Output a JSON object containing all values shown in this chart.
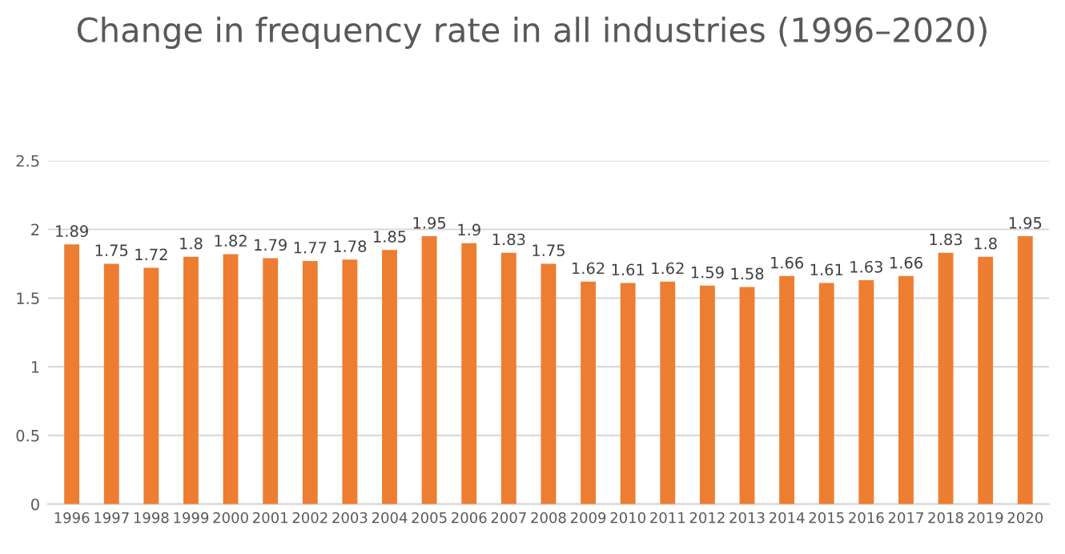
{
  "chart_data": {
    "type": "bar",
    "title": "Change in frequency rate in all industries (1996–2020)",
    "categories": [
      "1996",
      "1997",
      "1998",
      "1999",
      "2000",
      "2001",
      "2002",
      "2003",
      "2004",
      "2005",
      "2006",
      "2007",
      "2008",
      "2009",
      "2010",
      "2011",
      "2012",
      "2013",
      "2014",
      "2015",
      "2016",
      "2017",
      "2018",
      "2019",
      "2020"
    ],
    "values": [
      1.89,
      1.75,
      1.72,
      1.8,
      1.82,
      1.79,
      1.77,
      1.78,
      1.85,
      1.95,
      1.9,
      1.83,
      1.75,
      1.62,
      1.61,
      1.62,
      1.59,
      1.58,
      1.66,
      1.61,
      1.63,
      1.66,
      1.83,
      1.8,
      1.95
    ],
    "color": "#ed7d31",
    "ylim": [
      0,
      2.5
    ],
    "yticks": [
      0,
      0.5,
      1,
      1.5,
      2,
      2.5
    ],
    "grid": "y",
    "data_labels": true,
    "legend": false
  }
}
